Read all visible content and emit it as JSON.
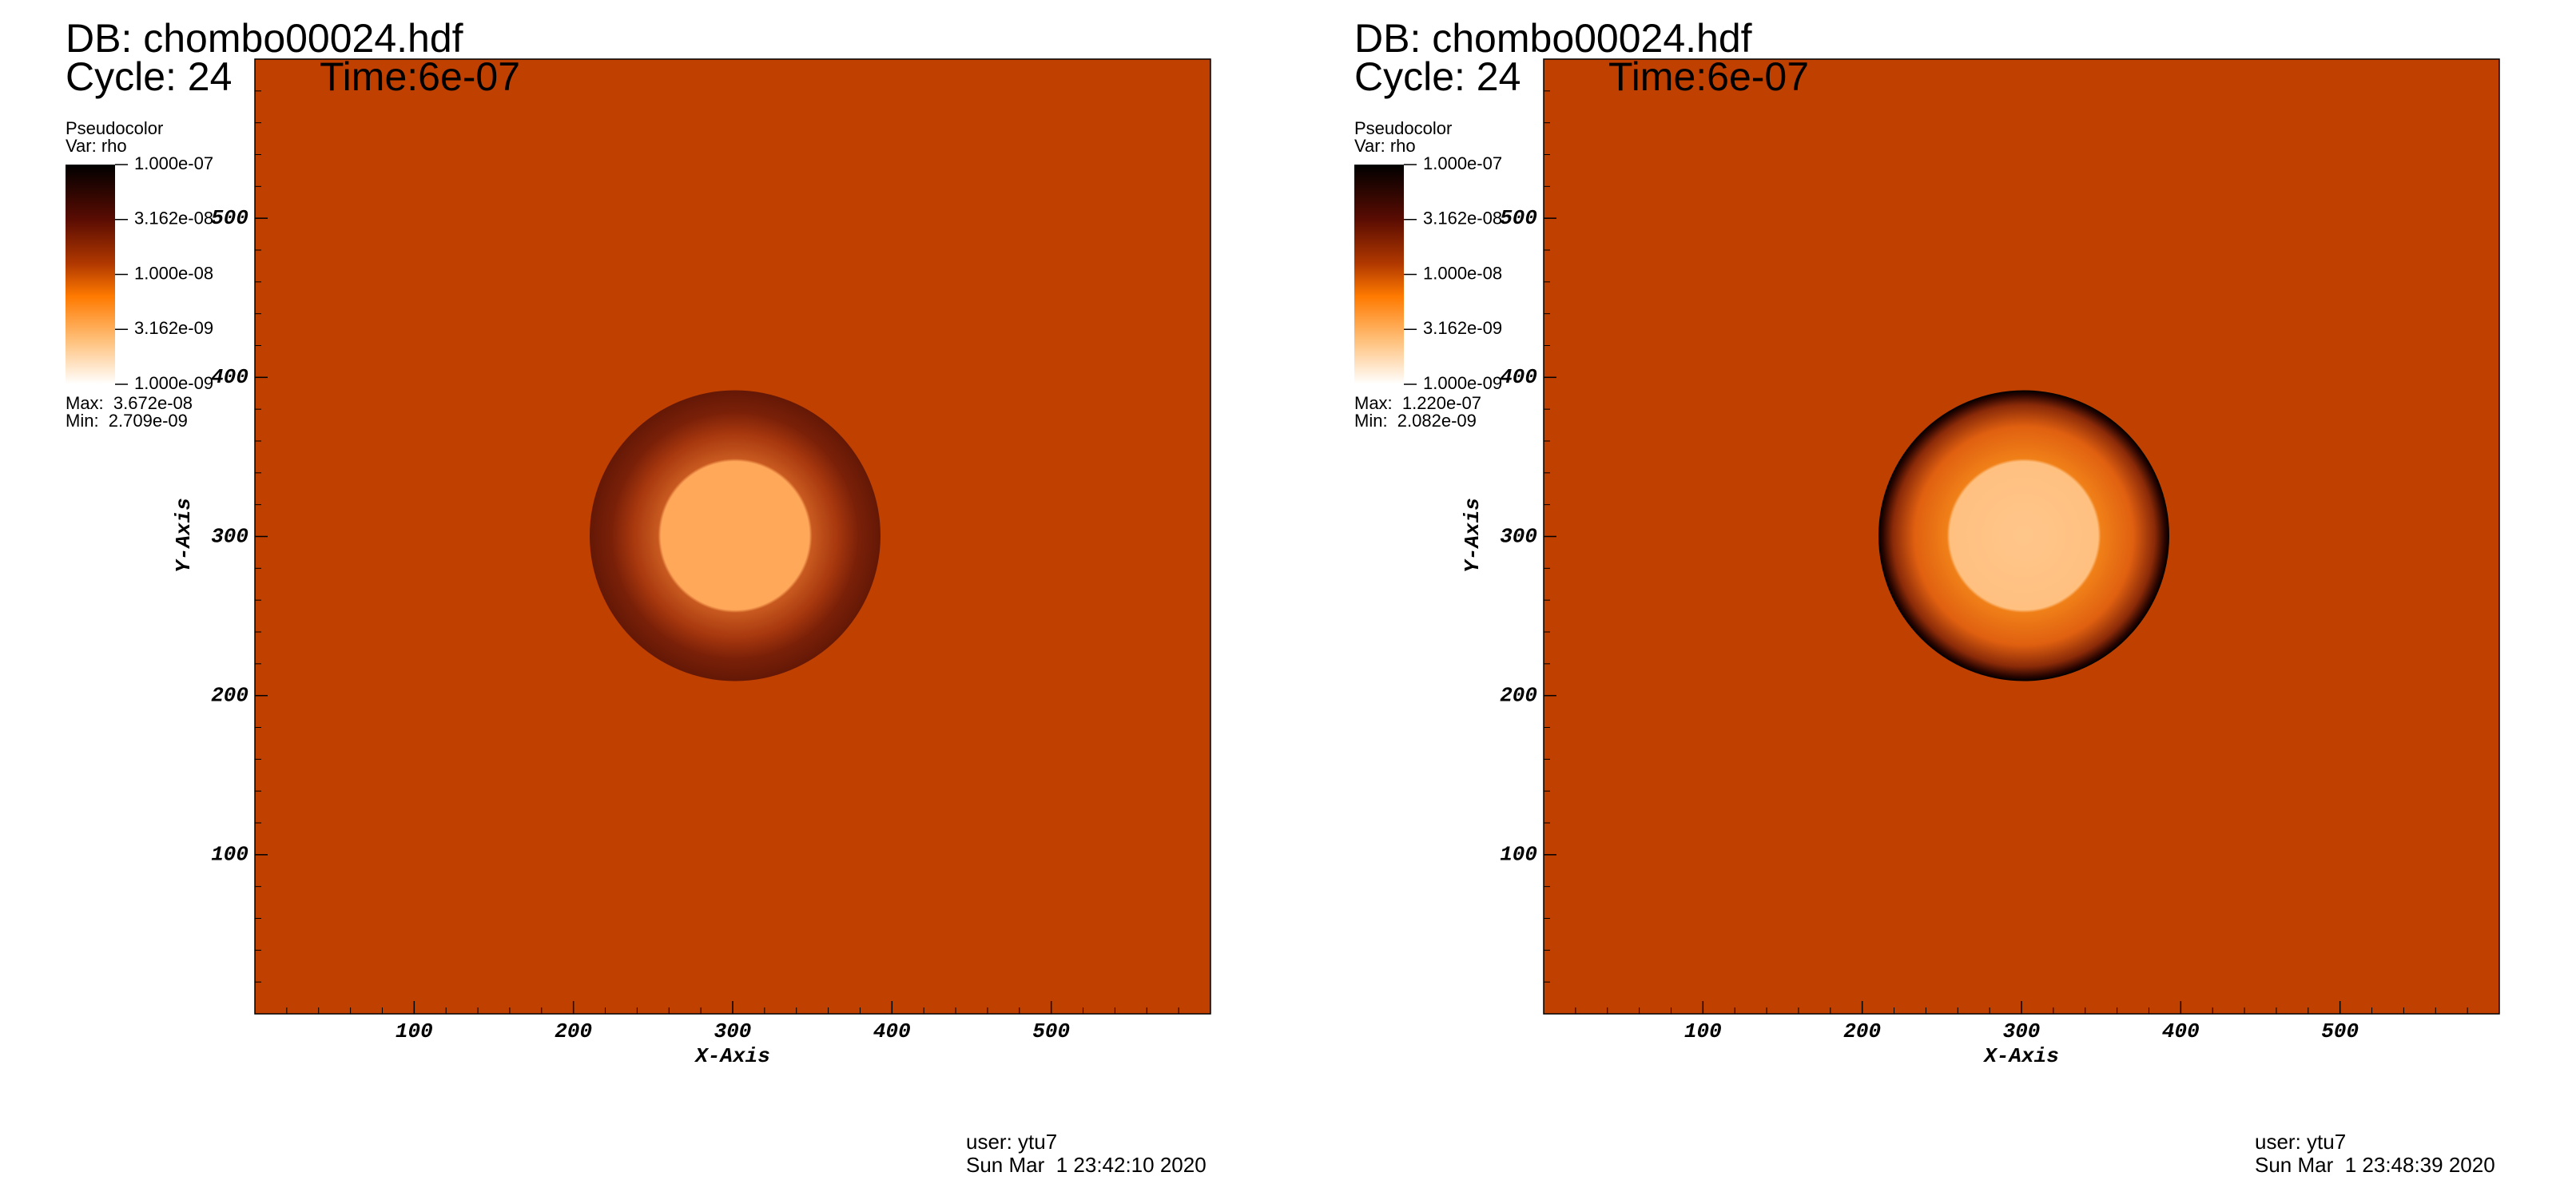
{
  "chart_data": [
    {
      "type": "pseudocolor",
      "title": "DB: chombo00024.hdf",
      "cycle": "Cycle: 24",
      "time": "Time:6e-07",
      "xlabel": "X-Axis",
      "ylabel": "Y-Axis",
      "xlim": [
        0,
        600
      ],
      "ylim": [
        0,
        600
      ],
      "xticks": [
        100,
        200,
        300,
        400,
        500
      ],
      "yticks": [
        100,
        200,
        300,
        400,
        500
      ],
      "legend": {
        "plot": "Pseudocolor",
        "var": "Var: rho",
        "log": true,
        "ticks": [
          {
            "value": 1e-07,
            "label": "1.000e-07"
          },
          {
            "value": 3.162e-08,
            "label": "3.162e-08"
          },
          {
            "value": 1e-08,
            "label": "1.000e-08"
          },
          {
            "value": 3.162e-09,
            "label": "3.162e-09"
          },
          {
            "value": 1e-09,
            "label": "1.000e-09"
          }
        ],
        "max": "Max:  3.672e-08",
        "min": "Min:  2.709e-09"
      },
      "user": "user: ytu7",
      "date": "Sun Mar  1 23:42:10 2020"
    },
    {
      "type": "pseudocolor",
      "title": "DB: chombo00024.hdf",
      "cycle": "Cycle: 24",
      "time": "Time:6e-07",
      "xlabel": "X-Axis",
      "ylabel": "Y-Axis",
      "xlim": [
        0,
        600
      ],
      "ylim": [
        0,
        600
      ],
      "xticks": [
        100,
        200,
        300,
        400,
        500
      ],
      "yticks": [
        100,
        200,
        300,
        400,
        500
      ],
      "legend": {
        "plot": "Pseudocolor",
        "var": "Var: rho",
        "log": true,
        "ticks": [
          {
            "value": 1e-07,
            "label": "1.000e-07"
          },
          {
            "value": 3.162e-08,
            "label": "3.162e-08"
          },
          {
            "value": 1e-08,
            "label": "1.000e-08"
          },
          {
            "value": 3.162e-09,
            "label": "3.162e-09"
          },
          {
            "value": 1e-09,
            "label": "1.000e-09"
          }
        ],
        "max": "Max:  1.220e-07",
        "min": "Min:  2.082e-09"
      },
      "user": "user: ytu7",
      "date": "Sun Mar  1 23:48:39 2020"
    }
  ]
}
